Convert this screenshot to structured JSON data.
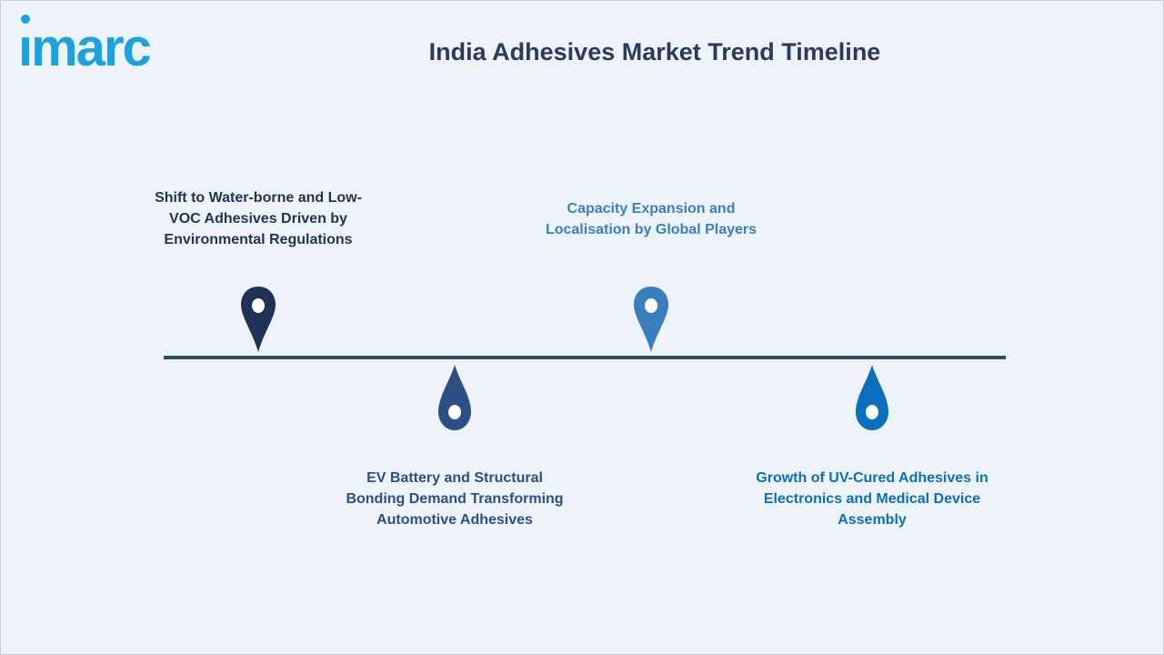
{
  "brand": {
    "name": "imarc",
    "color": "#1aa3e0"
  },
  "title": "India Adhesives Market Trend Timeline",
  "timeline": {
    "axis_color": "#2b4d6c",
    "events": [
      {
        "text": "Shift to Water-borne and Low-VOC Adhesives Driven by Environmental Regulations",
        "color": "#1f3356",
        "position": "above",
        "pin": "map-pin"
      },
      {
        "text": "EV Battery and Structural Bonding Demand Transforming Automotive Adhesives",
        "color": "#2c4f86",
        "position": "below",
        "pin": "droplet"
      },
      {
        "text": "Capacity Expansion and Localisation by Global Players",
        "color": "#3a7fbd",
        "position": "above",
        "pin": "map-pin"
      },
      {
        "text": "Growth of UV-Cured Adhesives in Electronics and Medical Device Assembly",
        "color": "#0a6fbd",
        "position": "below",
        "pin": "droplet"
      }
    ]
  }
}
